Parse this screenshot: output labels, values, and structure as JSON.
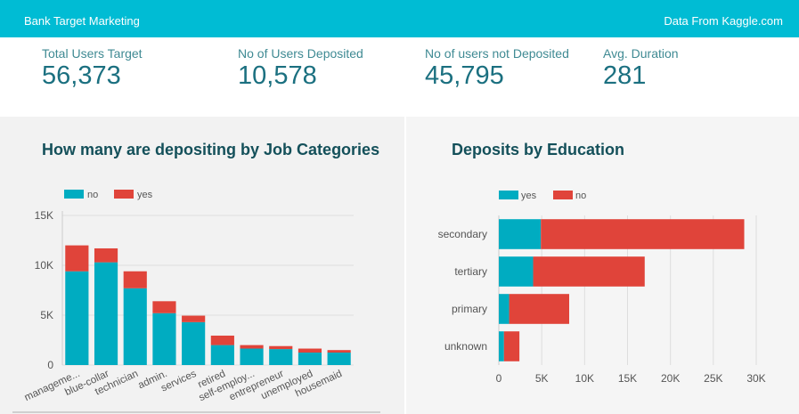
{
  "header": {
    "title": "Bank Target Marketing",
    "source": "Data From Kaggle.com"
  },
  "kpis": [
    {
      "label": "Total Users Target",
      "value": "56,373"
    },
    {
      "label": "No of Users Deposited",
      "value": "10,578"
    },
    {
      "label": "No of users not Deposited",
      "value": "45,795"
    },
    {
      "label": "Avg. Duration",
      "value": "281"
    }
  ],
  "colors": {
    "teal": "#00acc1",
    "red": "#e0443a",
    "header": "#00bcd4"
  },
  "chart_data": [
    {
      "type": "bar",
      "stacked": true,
      "orientation": "vertical",
      "title": "How many are depositing by Job Categories",
      "categories": [
        "manageme...",
        "blue-collar",
        "technician",
        "admin.",
        "services",
        "retired",
        "self-employ...",
        "entrepreneur",
        "unemployed",
        "housemaid"
      ],
      "series": [
        {
          "name": "no",
          "color": "#00acc1",
          "values": [
            9400,
            10300,
            7700,
            5200,
            4300,
            2000,
            1650,
            1600,
            1250,
            1250
          ]
        },
        {
          "name": "yes",
          "color": "#e0443a",
          "values": [
            2600,
            1400,
            1700,
            1200,
            650,
            950,
            350,
            300,
            400,
            250
          ]
        }
      ],
      "y_ticks": [
        "0",
        "5K",
        "10K",
        "15K"
      ],
      "y_tick_values": [
        0,
        5000,
        10000,
        15000
      ],
      "ylim": [
        0,
        15000
      ],
      "legend": [
        "no",
        "yes"
      ]
    },
    {
      "type": "bar",
      "stacked": true,
      "orientation": "horizontal",
      "title": "Deposits by Education",
      "categories": [
        "secondary",
        "tertiary",
        "primary",
        "unknown"
      ],
      "series": [
        {
          "name": "yes",
          "color": "#00acc1",
          "values": [
            4900,
            4000,
            1200,
            600
          ]
        },
        {
          "name": "no",
          "color": "#e0443a",
          "values": [
            23700,
            13000,
            7000,
            1800
          ]
        }
      ],
      "x_ticks": [
        "0",
        "5K",
        "10K",
        "15K",
        "20K",
        "25K",
        "30K"
      ],
      "x_tick_values": [
        0,
        5000,
        10000,
        15000,
        20000,
        25000,
        30000
      ],
      "xlim": [
        0,
        30000
      ],
      "legend": [
        "yes",
        "no"
      ]
    }
  ]
}
